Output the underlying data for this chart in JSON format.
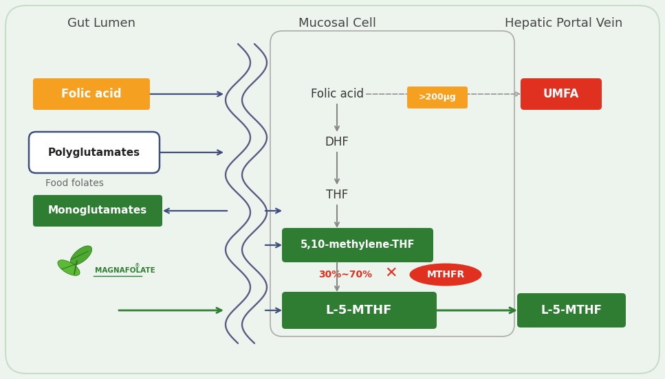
{
  "background_color": "#edf4ed",
  "title_gut": "Gut Lumen",
  "title_mucosal": "Mucosal Cell",
  "title_hepatic": "Hepatic Portal Vein",
  "folic_acid_label": "Folic acid",
  "polyglutamates_label": "Polyglutamates",
  "food_folates_label": "Food folates",
  "monoglutamates_label": "Monoglutamates",
  "dhf_label": "DHF",
  "thf_label": "THF",
  "methylene_label": "5,10-methylene-THF",
  "l5mthf_label": "L-5-MTHF",
  "l5mthf_right_label": "L-5-MTHF",
  "umfa_label": "UMFA",
  "mthfr_label": "MTHFR",
  "folic_acid_mucosal_label": "Folic acid",
  "percent_label": "30%~70%",
  "gt200_label": ">200μg",
  "magnafolate_label": "MAGNAFOLATE",
  "orange_color": "#F5A020",
  "green_dark": "#2E7D32",
  "green_light": "#4CAF50",
  "red_color": "#E03020",
  "navy_color": "#3F4E7A",
  "gray_color": "#888888",
  "white_color": "#FFFFFF"
}
